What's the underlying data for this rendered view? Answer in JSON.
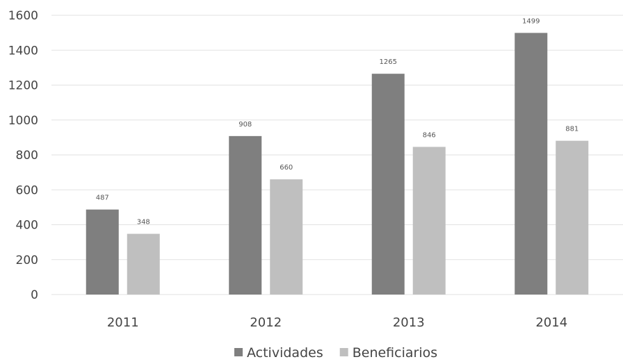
{
  "chart_data": {
    "type": "bar",
    "categories": [
      "2011",
      "2012",
      "2013",
      "2014"
    ],
    "series": [
      {
        "name": "Actividades",
        "values": [
          487,
          908,
          1265,
          1499
        ],
        "color": "#7f7f7f"
      },
      {
        "name": "Beneficiarios",
        "values": [
          348,
          660,
          846,
          881
        ],
        "color": "#bfbfbf"
      }
    ],
    "y_ticks": [
      "0",
      "200",
      "400",
      "600",
      "800",
      "1000",
      "1200",
      "1400",
      "1600"
    ],
    "ylim": [
      0,
      1600
    ],
    "grid": true,
    "legend": "bottom-center",
    "data_labels": true
  }
}
